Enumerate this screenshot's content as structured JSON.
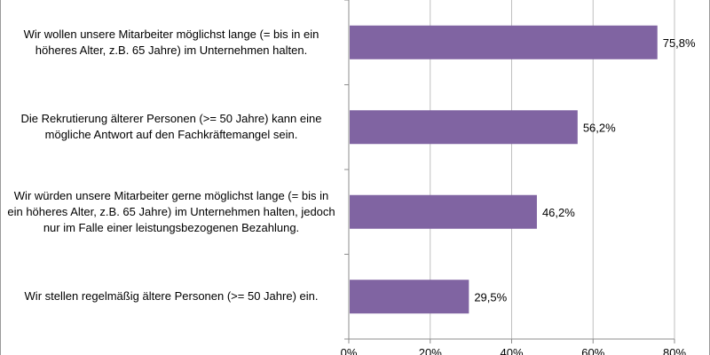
{
  "chart_data": {
    "type": "bar",
    "orientation": "horizontal",
    "categories": [
      "Wir wollen unsere Mitarbeiter möglichst lange (= bis in ein höheres Alter, z.B. 65 Jahre) im Unternehmen halten.",
      "Die Rekrutierung älterer Personen (>= 50 Jahre) kann eine mögliche Antwort auf den Fachkräftemangel sein.",
      "Wir würden unsere Mitarbeiter gerne möglichst lange (= bis in ein höheres Alter, z.B. 65 Jahre) im Unternehmen halten, jedoch nur im Falle einer leistungsbezogenen Bezahlung.",
      "Wir stellen regelmäßig ältere Personen (>= 50 Jahre) ein."
    ],
    "values": [
      75.8,
      56.2,
      46.2,
      29.5
    ],
    "data_labels": [
      "75,8%",
      "56,2%",
      "46,2%",
      "29,5%"
    ],
    "xlim": [
      0,
      80
    ],
    "x_ticks": [
      "0%",
      "20%",
      "40%",
      "60%",
      "80%"
    ],
    "grid": true,
    "bar_color": "#8064A2"
  }
}
